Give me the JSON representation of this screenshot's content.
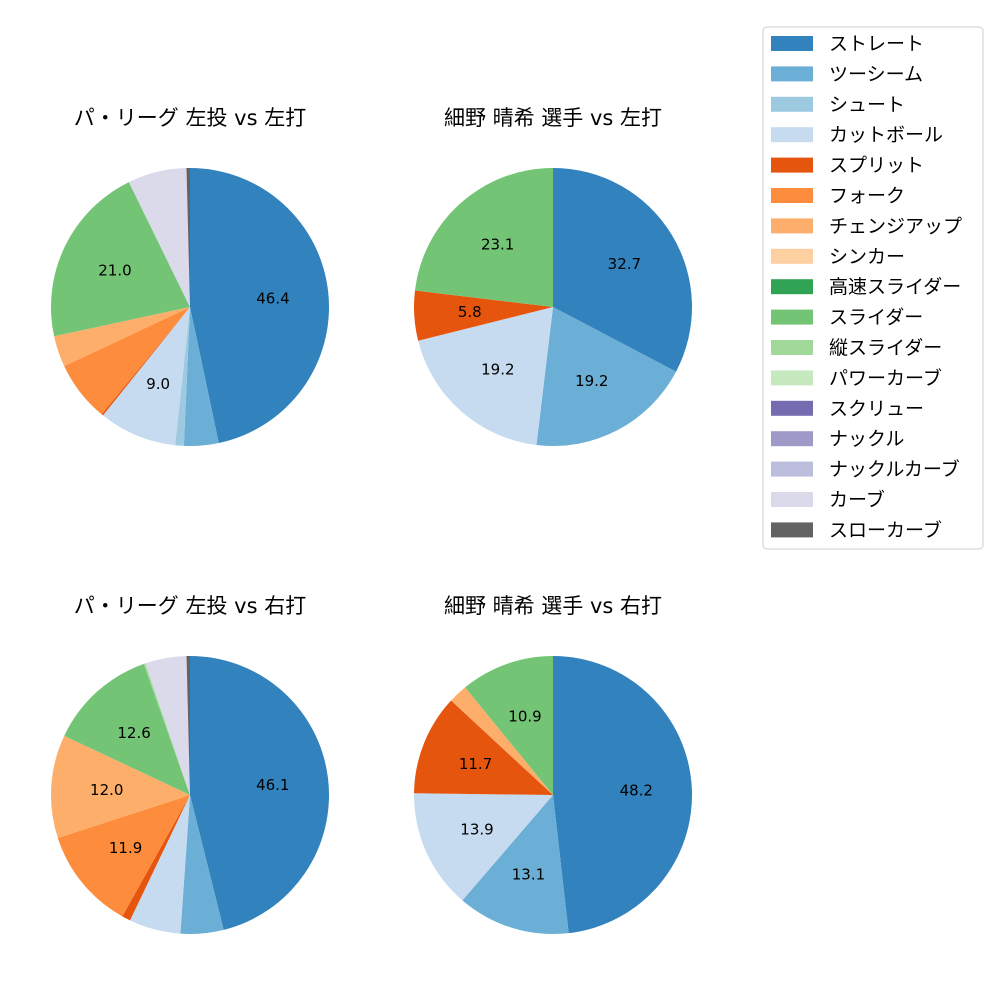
{
  "legend": {
    "placement": "top-right",
    "items": [
      {
        "label": "ストレート",
        "color": "#3182bd"
      },
      {
        "label": "ツーシーム",
        "color": "#6baed6"
      },
      {
        "label": "シュート",
        "color": "#9ecae1"
      },
      {
        "label": "カットボール",
        "color": "#c6dbef"
      },
      {
        "label": "スプリット",
        "color": "#e6550d"
      },
      {
        "label": "フォーク",
        "color": "#fd8d3c"
      },
      {
        "label": "チェンジアップ",
        "color": "#fdae6b"
      },
      {
        "label": "シンカー",
        "color": "#fdd0a2"
      },
      {
        "label": "高速スライダー",
        "color": "#31a354"
      },
      {
        "label": "スライダー",
        "color": "#74c476"
      },
      {
        "label": "縦スライダー",
        "color": "#a1d99b"
      },
      {
        "label": "パワーカーブ",
        "color": "#c7e9c0"
      },
      {
        "label": "スクリュー",
        "color": "#756bb1"
      },
      {
        "label": "ナックル",
        "color": "#9e9ac8"
      },
      {
        "label": "ナックルカーブ",
        "color": "#bcbddc"
      },
      {
        "label": "カーブ",
        "color": "#dadaeb"
      },
      {
        "label": "スローカーブ",
        "color": "#636363"
      }
    ]
  },
  "chart_data": [
    {
      "type": "pie",
      "title": "パ・リーグ 左投 vs 左打",
      "slices": [
        {
          "category": "ストレート",
          "value": 46.4,
          "label": "46.4"
        },
        {
          "category": "ツーシーム",
          "value": 4.0,
          "label": ""
        },
        {
          "category": "シュート",
          "value": 1.0,
          "label": ""
        },
        {
          "category": "カットボール",
          "value": 9.0,
          "label": "9.0"
        },
        {
          "category": "スプリット",
          "value": 0.2,
          "label": ""
        },
        {
          "category": "フォーク",
          "value": 7.0,
          "label": ""
        },
        {
          "category": "チェンジアップ",
          "value": 3.6,
          "label": ""
        },
        {
          "category": "スライダー",
          "value": 21.0,
          "label": "21.0"
        },
        {
          "category": "カーブ",
          "value": 6.8,
          "label": ""
        },
        {
          "category": "スローカーブ",
          "value": 0.4,
          "label": ""
        }
      ]
    },
    {
      "type": "pie",
      "title": "細野 晴希 選手 vs 左打",
      "slices": [
        {
          "category": "ストレート",
          "value": 32.7,
          "label": "32.7"
        },
        {
          "category": "ツーシーム",
          "value": 19.2,
          "label": "19.2"
        },
        {
          "category": "カットボール",
          "value": 19.2,
          "label": "19.2"
        },
        {
          "category": "スプリット",
          "value": 5.8,
          "label": "5.8"
        },
        {
          "category": "スライダー",
          "value": 23.1,
          "label": "23.1"
        }
      ]
    },
    {
      "type": "pie",
      "title": "パ・リーグ 左投 vs 右打",
      "slices": [
        {
          "category": "ストレート",
          "value": 46.1,
          "label": "46.1"
        },
        {
          "category": "ツーシーム",
          "value": 5.0,
          "label": ""
        },
        {
          "category": "カットボール",
          "value": 6.0,
          "label": ""
        },
        {
          "category": "スプリット",
          "value": 1.0,
          "label": ""
        },
        {
          "category": "フォーク",
          "value": 11.9,
          "label": "11.9"
        },
        {
          "category": "チェンジアップ",
          "value": 12.0,
          "label": "12.0"
        },
        {
          "category": "スライダー",
          "value": 12.6,
          "label": "12.6"
        },
        {
          "category": "縦スライダー",
          "value": 0.2,
          "label": ""
        },
        {
          "category": "カーブ",
          "value": 4.8,
          "label": ""
        },
        {
          "category": "スローカーブ",
          "value": 0.4,
          "label": ""
        }
      ]
    },
    {
      "type": "pie",
      "title": "細野 晴希 選手 vs 右打",
      "slices": [
        {
          "category": "ストレート",
          "value": 48.2,
          "label": "48.2"
        },
        {
          "category": "ツーシーム",
          "value": 13.1,
          "label": "13.1"
        },
        {
          "category": "カットボール",
          "value": 13.9,
          "label": "13.9"
        },
        {
          "category": "スプリット",
          "value": 11.7,
          "label": "11.7"
        },
        {
          "category": "チェンジアップ",
          "value": 2.2,
          "label": ""
        },
        {
          "category": "スライダー",
          "value": 10.9,
          "label": "10.9"
        }
      ]
    }
  ]
}
